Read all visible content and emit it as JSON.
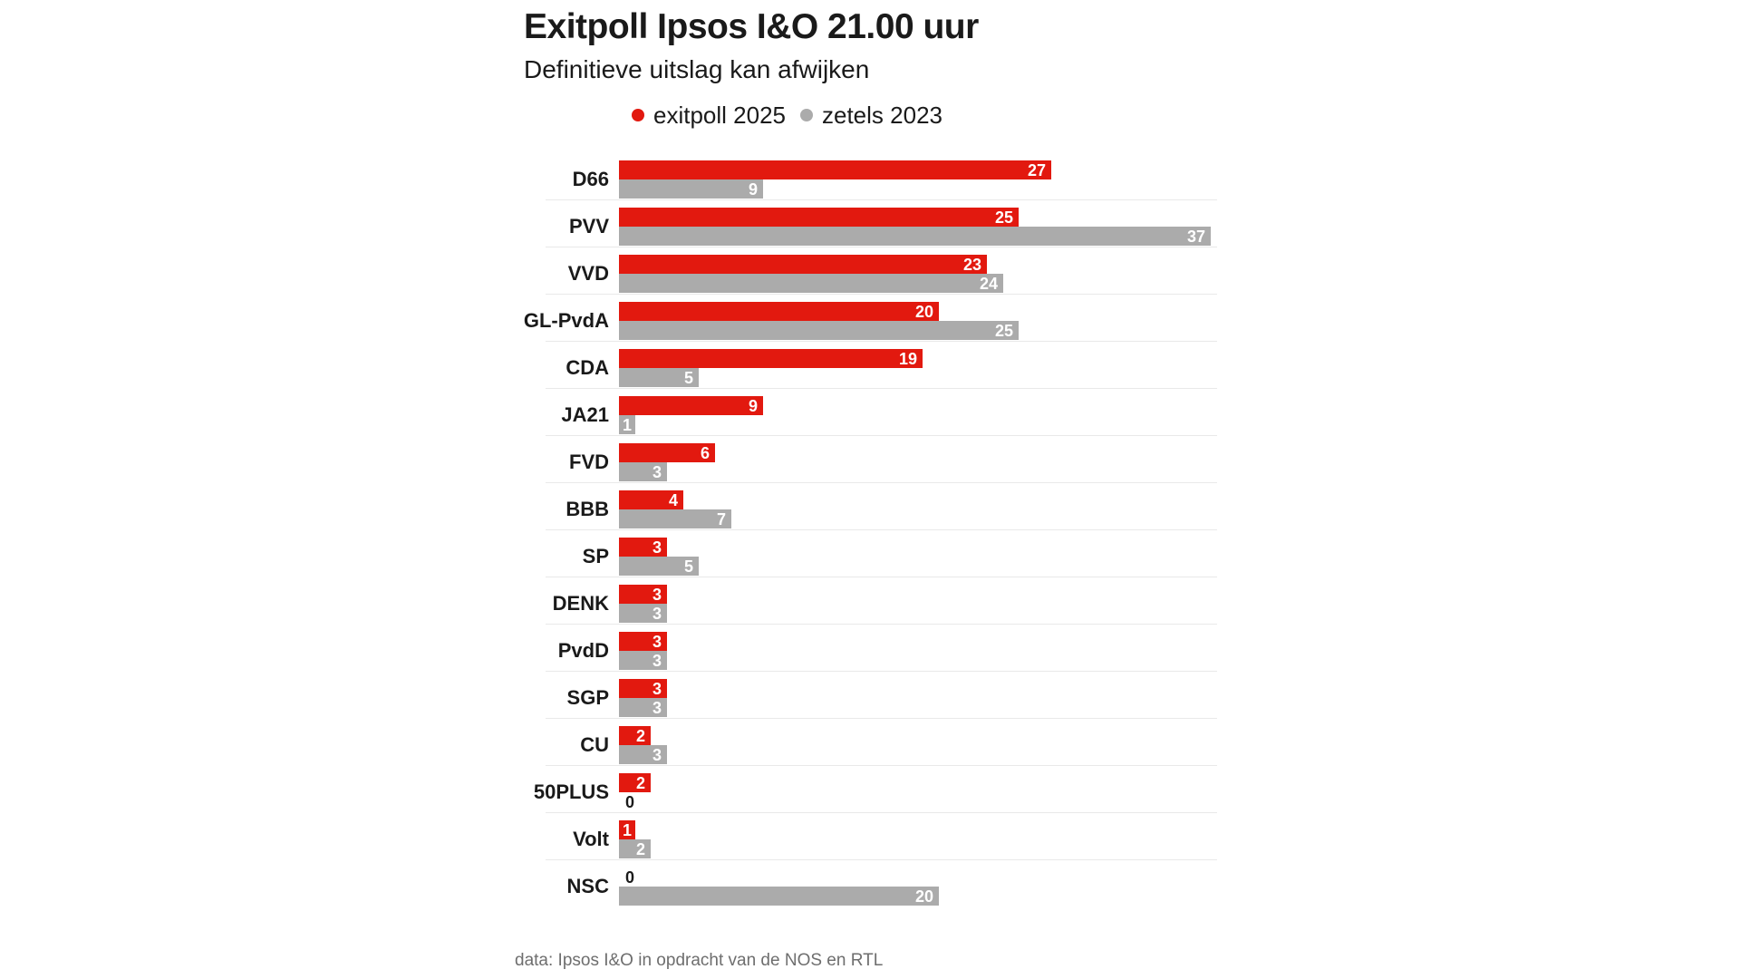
{
  "header": {
    "title": "Exitpoll Ipsos I&O 21.00 uur",
    "subtitle": "Definitieve uitslag kan afwijken"
  },
  "footer": {
    "source": "data: Ipsos I&O in opdracht van de NOS en RTL"
  },
  "colors": {
    "exitpoll_red": "#e2190f",
    "zetels_gray": "#ababab",
    "text": "#1a1a1a",
    "separator": "#e9e9e9",
    "source_text": "#6e6e6e",
    "background": "#ffffff",
    "value_label_inside": "#ffffff",
    "value_label_zero": "#1a1a1a"
  },
  "chart_data": {
    "type": "bar",
    "orientation": "horizontal",
    "title": "Exitpoll Ipsos I&O 21.00 uur",
    "subtitle": "Definitieve uitslag kan afwijken",
    "source_note": "data: Ipsos I&O in opdracht van de NOS en RTL",
    "categories": [
      "D66",
      "PVV",
      "VVD",
      "GL-PvdA",
      "CDA",
      "JA21",
      "FVD",
      "BBB",
      "SP",
      "DENK",
      "PvdD",
      "SGP",
      "CU",
      "50PLUS",
      "Volt",
      "NSC"
    ],
    "series": [
      {
        "name": "exitpoll 2025",
        "color": "#e2190f",
        "values": [
          27,
          25,
          23,
          20,
          19,
          9,
          6,
          4,
          3,
          3,
          3,
          3,
          2,
          2,
          1,
          0
        ]
      },
      {
        "name": "zetels 2023",
        "color": "#ababab",
        "values": [
          9,
          37,
          24,
          25,
          5,
          1,
          3,
          7,
          5,
          3,
          3,
          3,
          3,
          0,
          2,
          20
        ]
      }
    ],
    "xlim": [
      0,
      37
    ],
    "grid": false,
    "legend_position": "top",
    "value_label_style": "inside bar end in white; zero values rendered as black text beside axis"
  }
}
